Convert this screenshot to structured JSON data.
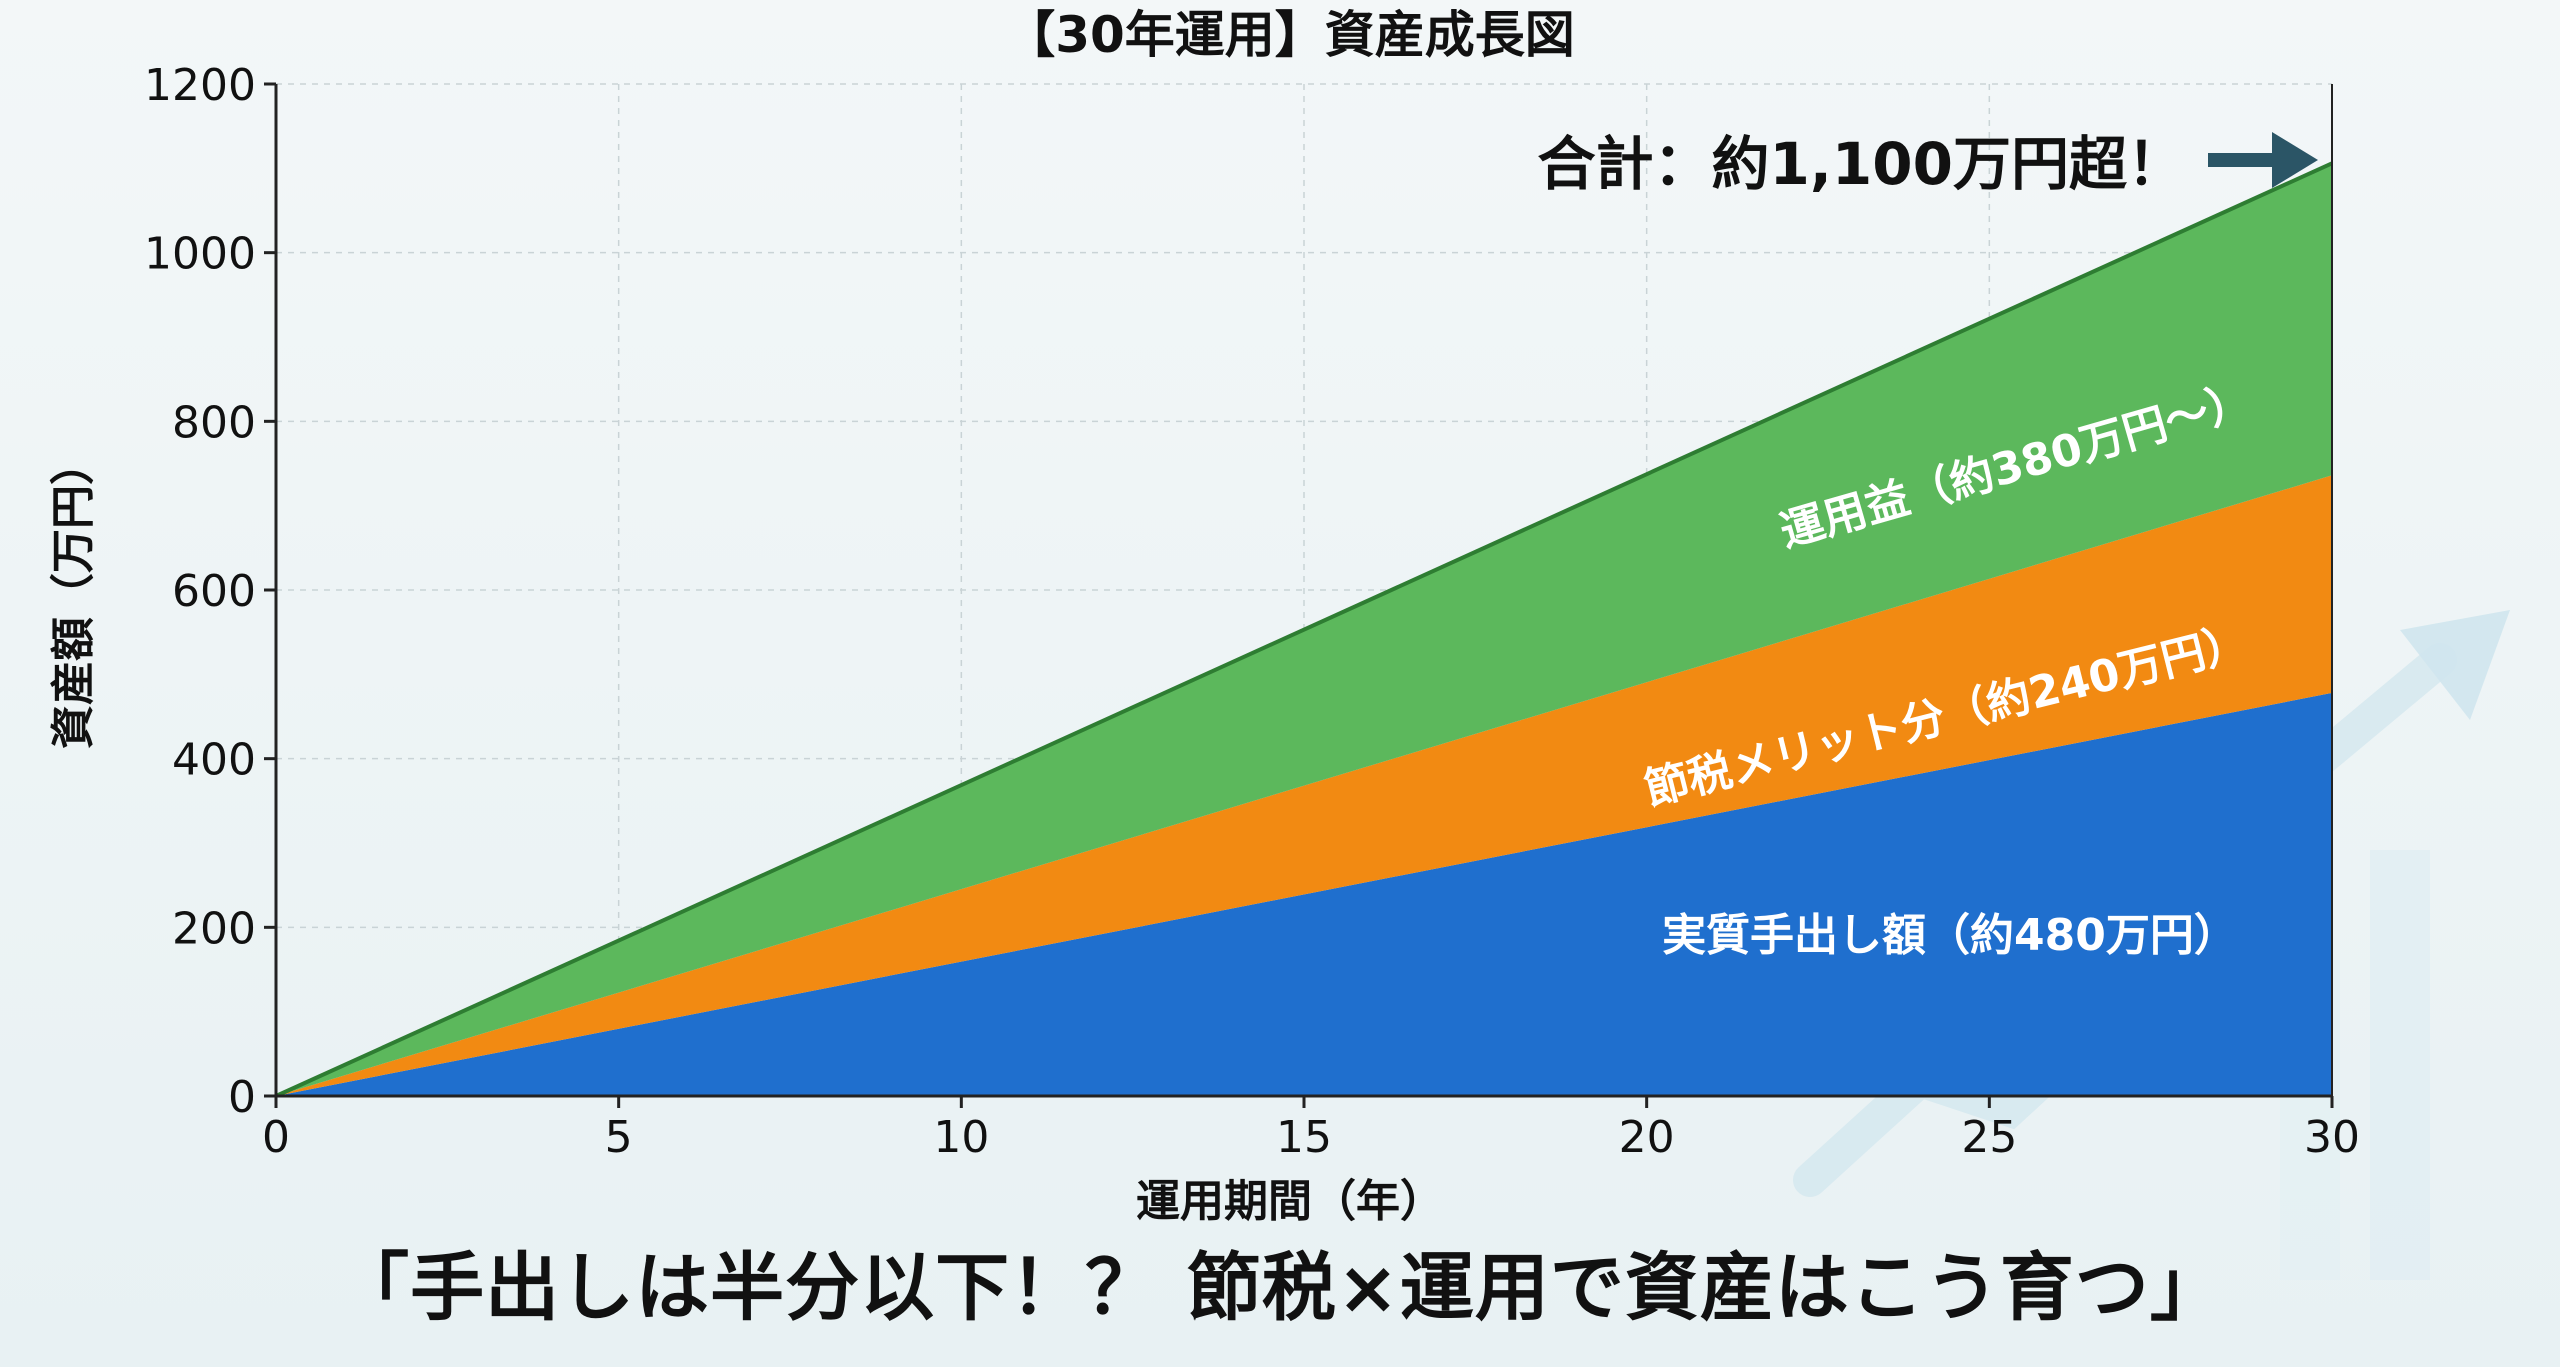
{
  "chart_data": {
    "type": "area",
    "stacked": true,
    "title": "【30年運用】資産成長図",
    "xlabel": "運用期間（年）",
    "ylabel": "資産額（万円）",
    "xlim": [
      0,
      30
    ],
    "ylim": [
      0,
      1200
    ],
    "x_ticks": [
      0,
      5,
      10,
      15,
      20,
      25,
      30
    ],
    "y_ticks": [
      0,
      200,
      400,
      600,
      800,
      1000,
      1200
    ],
    "grid": true,
    "x": [
      0,
      30
    ],
    "series": [
      {
        "name": "実質手出し額（約480万円）",
        "color": "#1f6fce",
        "values": [
          0,
          478
        ]
      },
      {
        "name": "節税メリット分（約240万円）",
        "color": "#f28a12",
        "values": [
          0,
          258
        ]
      },
      {
        "name": "運用益（約380万円〜）",
        "color": "#5cb85c",
        "values": [
          0,
          370
        ]
      }
    ],
    "annotation": "合計：約1,100万円超！",
    "total_end_value": 1106
  },
  "caption": "「手出しは半分以下！？ 節税×運用で資産はこう育つ」"
}
